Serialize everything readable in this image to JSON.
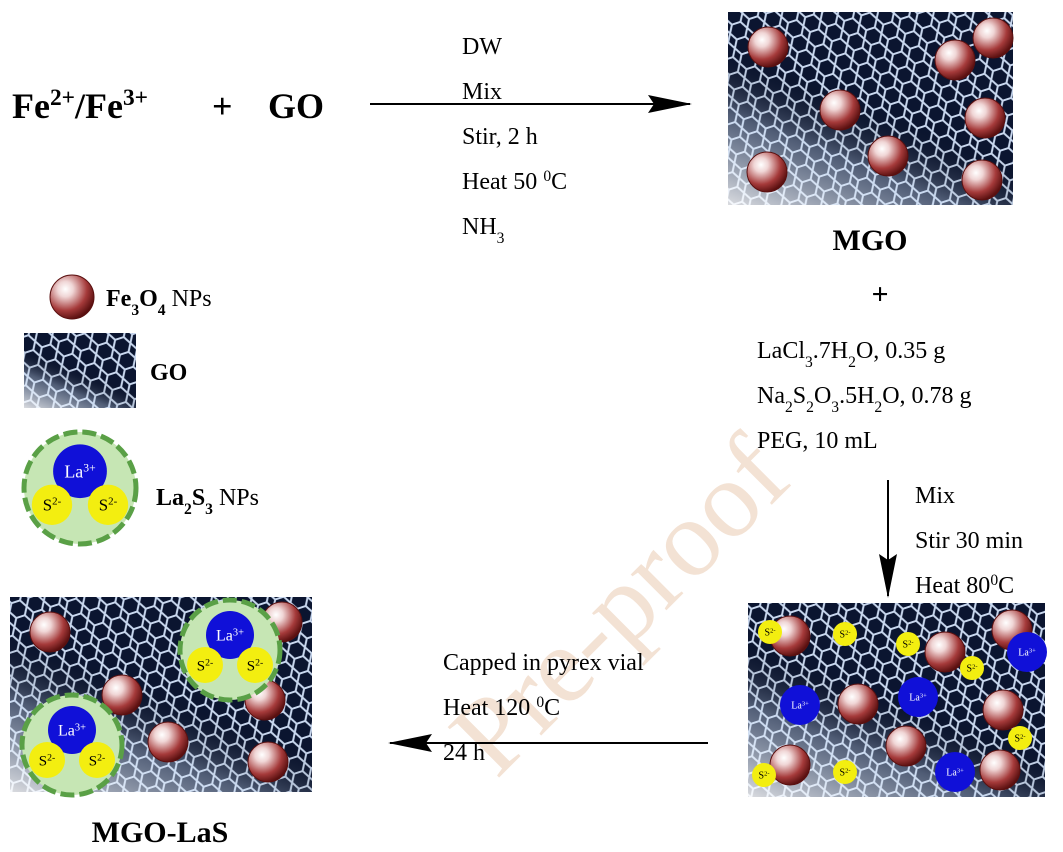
{
  "reaction1": {
    "reactant_a": [
      {
        "text": "Fe"
      },
      {
        "text": "2+",
        "style": "sup"
      },
      {
        "text": "/Fe"
      },
      {
        "text": "3+",
        "style": "sup"
      }
    ],
    "plus": "+",
    "reactant_b": "GO",
    "conditions": [
      [
        {
          "text": "DW"
        }
      ],
      [
        {
          "text": "Mix"
        }
      ],
      [
        {
          "text": "Stir, 2 h"
        }
      ],
      [
        {
          "text": "Heat 50 "
        },
        {
          "text": "0",
          "style": "sup"
        },
        {
          "text": "C"
        }
      ],
      [
        {
          "text": "NH"
        },
        {
          "text": "3",
          "style": "sub"
        }
      ]
    ]
  },
  "product1": {
    "label": "MGO",
    "plus": "+"
  },
  "reagents": [
    [
      {
        "text": "LaCl"
      },
      {
        "text": "3",
        "style": "sub"
      },
      {
        "text": ".7H"
      },
      {
        "text": "2",
        "style": "sub"
      },
      {
        "text": "O, 0.35 g"
      }
    ],
    [
      {
        "text": "Na"
      },
      {
        "text": "2",
        "style": "sub"
      },
      {
        "text": "S"
      },
      {
        "text": "2",
        "style": "sub"
      },
      {
        "text": "O"
      },
      {
        "text": "3",
        "style": "sub"
      },
      {
        "text": ".5H"
      },
      {
        "text": "2",
        "style": "sub"
      },
      {
        "text": "O, 0.78 g"
      }
    ],
    [
      {
        "text": "PEG, 10 mL"
      }
    ]
  ],
  "step2_conditions": [
    [
      {
        "text": "Mix"
      }
    ],
    [
      {
        "text": "Stir 30 min"
      }
    ],
    [
      {
        "text": "Heat 80"
      },
      {
        "text": "0",
        "style": "sup"
      },
      {
        "text": "C"
      }
    ]
  ],
  "step3_conditions": [
    [
      {
        "text": "Capped in pyrex vial"
      }
    ],
    [
      {
        "text": "Heat 120 "
      },
      {
        "text": "0",
        "style": "sup"
      },
      {
        "text": "C"
      }
    ],
    [
      {
        "text": "24 h"
      }
    ]
  ],
  "product2": {
    "label": "MGO-LaS"
  },
  "particle_labels": {
    "la": [
      {
        "text": "La"
      },
      {
        "text": "3+",
        "style": "sup"
      }
    ],
    "s": [
      {
        "text": "S"
      },
      {
        "text": "2-",
        "style": "sup"
      }
    ]
  },
  "legend": [
    {
      "label": [
        {
          "text": "Fe",
          "style": "bold"
        },
        {
          "text": "3",
          "style": "bold-sub"
        },
        {
          "text": "O",
          "style": "bold"
        },
        {
          "text": "4",
          "style": "bold-sub"
        },
        {
          "text": " NPs"
        }
      ]
    },
    {
      "label": [
        {
          "text": "GO",
          "style": "bold"
        }
      ]
    },
    {
      "label": [
        {
          "text": "La",
          "style": "bold"
        },
        {
          "text": "2",
          "style": "bold-sub"
        },
        {
          "text": "S",
          "style": "bold"
        },
        {
          "text": "3",
          "style": "bold-sub"
        },
        {
          "text": " NPs"
        }
      ]
    }
  ],
  "watermark": "Pre-proof"
}
